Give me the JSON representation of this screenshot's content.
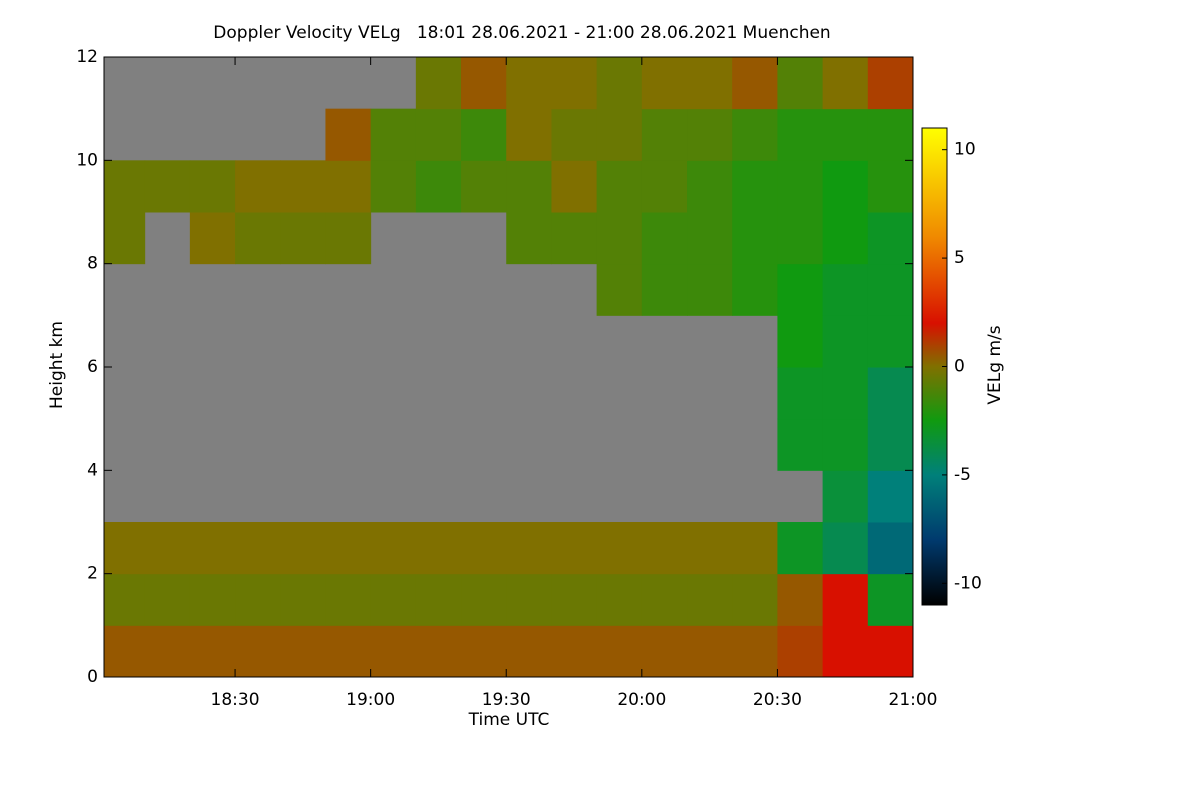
{
  "chart_data": {
    "type": "heatmap",
    "title": "Doppler Velocity VELg   18:01 28.06.2021 - 21:00 28.06.2021 Muenchen",
    "xlabel": "Time UTC",
    "ylabel": "Height km",
    "colorbar_label": "VELg m/s",
    "xlim": [
      18.0167,
      21.0
    ],
    "xticks": [
      {
        "value": 18.5,
        "label": "18:30"
      },
      {
        "value": 19.0,
        "label": "19:00"
      },
      {
        "value": 19.5,
        "label": "19:30"
      },
      {
        "value": 20.0,
        "label": "20:00"
      },
      {
        "value": 20.5,
        "label": "20:30"
      },
      {
        "value": 21.0,
        "label": "21:00"
      }
    ],
    "ylim": [
      0,
      12
    ],
    "yticks": [
      0,
      2,
      4,
      6,
      8,
      10,
      12
    ],
    "xbins": [
      18.0,
      18.1667,
      18.3333,
      18.5,
      18.6667,
      18.8333,
      19.0,
      19.1667,
      19.3333,
      19.5,
      19.6667,
      19.8333,
      20.0,
      20.1667,
      20.3333,
      20.5,
      20.6667,
      20.8333,
      21.0
    ],
    "ybins": [
      0,
      1,
      2,
      3,
      4,
      5,
      6,
      7,
      8,
      9,
      10,
      11,
      12
    ],
    "z": [
      [
        0.5,
        0.5,
        0.5,
        0.5,
        0.5,
        0.5,
        0.5,
        0.5,
        0.5,
        0.5,
        0.5,
        0.5,
        0.5,
        0.5,
        0.5,
        1,
        2,
        2
      ],
      [
        -0.5,
        -0.5,
        -0.5,
        -0.5,
        -0.5,
        -0.5,
        -0.5,
        -0.5,
        -0.5,
        -0.5,
        -0.5,
        -0.5,
        -0.5,
        -0.5,
        -0.5,
        0.5,
        2,
        -3
      ],
      [
        0,
        0,
        0,
        0,
        0,
        0,
        0,
        0,
        0,
        0,
        0,
        0,
        0,
        0,
        0,
        -3,
        -4,
        -6
      ],
      [
        null,
        null,
        null,
        null,
        null,
        null,
        null,
        null,
        null,
        null,
        null,
        null,
        null,
        null,
        null,
        null,
        -3.5,
        -5
      ],
      [
        null,
        null,
        null,
        null,
        null,
        null,
        null,
        null,
        null,
        null,
        null,
        null,
        null,
        null,
        null,
        -3,
        -3,
        -4
      ],
      [
        null,
        null,
        null,
        null,
        null,
        null,
        null,
        null,
        null,
        null,
        null,
        null,
        null,
        null,
        null,
        -3,
        -3,
        -4
      ],
      [
        null,
        null,
        null,
        null,
        null,
        null,
        null,
        null,
        null,
        null,
        null,
        null,
        null,
        null,
        null,
        -2.5,
        -3,
        -3
      ],
      [
        null,
        null,
        null,
        null,
        null,
        null,
        null,
        null,
        null,
        null,
        null,
        -1,
        -1.5,
        -1.5,
        -2,
        -2.5,
        -3,
        -3
      ],
      [
        -0.5,
        null,
        0,
        -0.5,
        -0.5,
        -0.5,
        null,
        null,
        null,
        -1,
        -1,
        -1,
        -1.5,
        -1.5,
        -2,
        -2,
        -2.5,
        -3
      ],
      [
        -0.5,
        -0.5,
        -0.5,
        0,
        0,
        0,
        -1,
        -1.5,
        -1,
        -1,
        0,
        -1,
        -1,
        -1.5,
        -2,
        -2,
        -2.5,
        -2
      ],
      [
        null,
        null,
        null,
        null,
        null,
        0.5,
        -1,
        -1,
        -1.5,
        0,
        -0.5,
        -0.5,
        -1,
        -1,
        -1.5,
        -2,
        -2,
        -2
      ],
      [
        null,
        null,
        null,
        null,
        null,
        null,
        null,
        -0.5,
        0.5,
        0,
        0,
        -0.5,
        0,
        0,
        0.5,
        -1,
        0,
        1
      ]
    ],
    "nodata_color": "#808080",
    "zlim": [
      -11,
      11
    ],
    "zticks": [
      -10,
      -5,
      0,
      5,
      10
    ],
    "colormap": [
      {
        "value": -11,
        "color": "#000000"
      },
      {
        "value": -8,
        "color": "#003a6e"
      },
      {
        "value": -5,
        "color": "#00807a"
      },
      {
        "value": -2.5,
        "color": "#109a10"
      },
      {
        "value": 0,
        "color": "#807000"
      },
      {
        "value": 2,
        "color": "#d81000"
      },
      {
        "value": 6,
        "color": "#f08a00"
      },
      {
        "value": 11,
        "color": "#ffff00"
      }
    ]
  }
}
